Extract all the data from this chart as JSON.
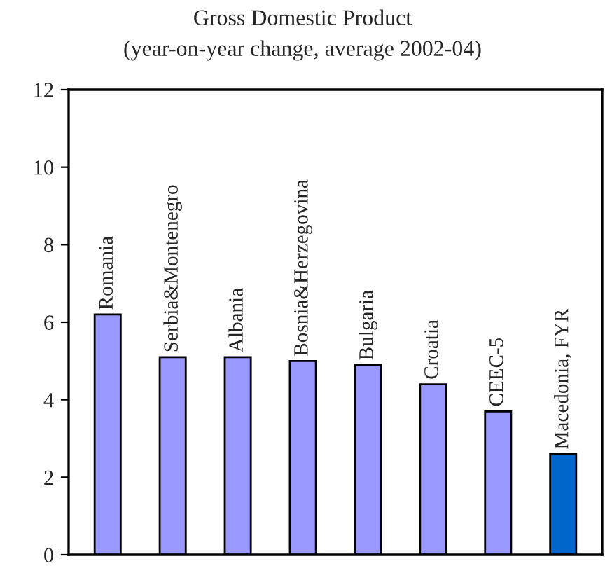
{
  "chart_data": {
    "type": "bar",
    "title": "Gross Domestic Product",
    "subtitle": "(year-on-year change, average 2002-04)",
    "categories": [
      "Romania",
      "Serbia&Montenegro",
      "Albania",
      "Bosnia&Herzegovina",
      "Bulgaria",
      "Croatia",
      "CEEC-5",
      "Macedonia, FYR"
    ],
    "values": [
      6.2,
      5.1,
      5.1,
      5.0,
      4.9,
      4.4,
      3.7,
      2.6
    ],
    "colors": [
      "#9999ff",
      "#9999ff",
      "#9999ff",
      "#9999ff",
      "#9999ff",
      "#9999ff",
      "#9999ff",
      "#0066cc"
    ],
    "ylim": [
      0,
      12
    ],
    "yticks": [
      0,
      2,
      4,
      6,
      8,
      10,
      12
    ],
    "grid": false,
    "legend": false
  }
}
